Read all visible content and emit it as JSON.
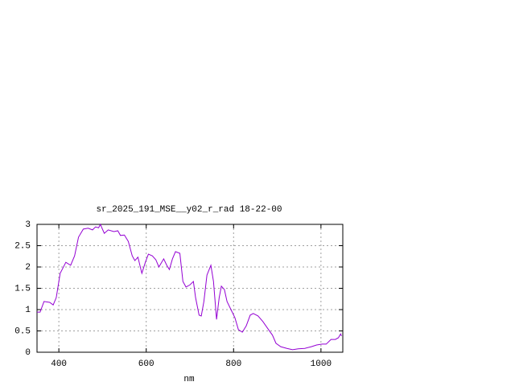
{
  "chart_data": {
    "type": "line",
    "title": "sr_2025_191_MSE__y02_r_rad 18-22-00",
    "x_label": "nm",
    "xlim": [
      350,
      1050
    ],
    "xticks": [
      400,
      600,
      800,
      1000
    ],
    "ylim": [
      0,
      3
    ],
    "yticks": [
      0,
      0.5,
      1,
      1.5,
      2,
      2.5,
      3
    ],
    "grid": true,
    "series": [
      {
        "color": "#9400d3",
        "x": [
          350,
          357,
          366,
          379,
          387,
          394,
          403,
          416,
          427,
          436,
          445,
          456,
          467,
          477,
          484,
          491,
          495,
          504,
          513,
          526,
          535,
          541,
          550,
          559,
          568,
          574,
          581,
          590,
          598,
          605,
          614,
          622,
          629,
          640,
          647,
          653,
          660,
          667,
          677,
          684,
          691,
          700,
          708,
          713,
          721,
          726,
          732,
          739,
          748,
          754,
          761,
          767,
          772,
          779,
          785,
          794,
          803,
          811,
          820,
          829,
          838,
          845,
          856,
          867,
          880,
          889,
          897,
          908,
          922,
          935,
          948,
          963,
          978,
          990,
          1003,
          1012,
          1023,
          1033,
          1040,
          1045,
          1047
        ],
        "values": [
          0.94,
          0.94,
          1.19,
          1.17,
          1.11,
          1.28,
          1.85,
          2.11,
          2.04,
          2.26,
          2.7,
          2.89,
          2.91,
          2.87,
          2.94,
          2.92,
          3.0,
          2.79,
          2.87,
          2.83,
          2.85,
          2.74,
          2.75,
          2.6,
          2.26,
          2.15,
          2.23,
          1.85,
          2.11,
          2.3,
          2.26,
          2.17,
          2.0,
          2.19,
          2.04,
          1.94,
          2.19,
          2.36,
          2.32,
          1.66,
          1.53,
          1.58,
          1.66,
          1.28,
          0.87,
          0.85,
          1.19,
          1.81,
          2.04,
          1.66,
          0.77,
          1.28,
          1.55,
          1.47,
          1.19,
          1.0,
          0.81,
          0.53,
          0.47,
          0.62,
          0.87,
          0.91,
          0.85,
          0.72,
          0.53,
          0.4,
          0.21,
          0.13,
          0.09,
          0.06,
          0.08,
          0.09,
          0.13,
          0.17,
          0.19,
          0.19,
          0.3,
          0.3,
          0.34,
          0.43,
          0.38
        ]
      }
    ]
  }
}
